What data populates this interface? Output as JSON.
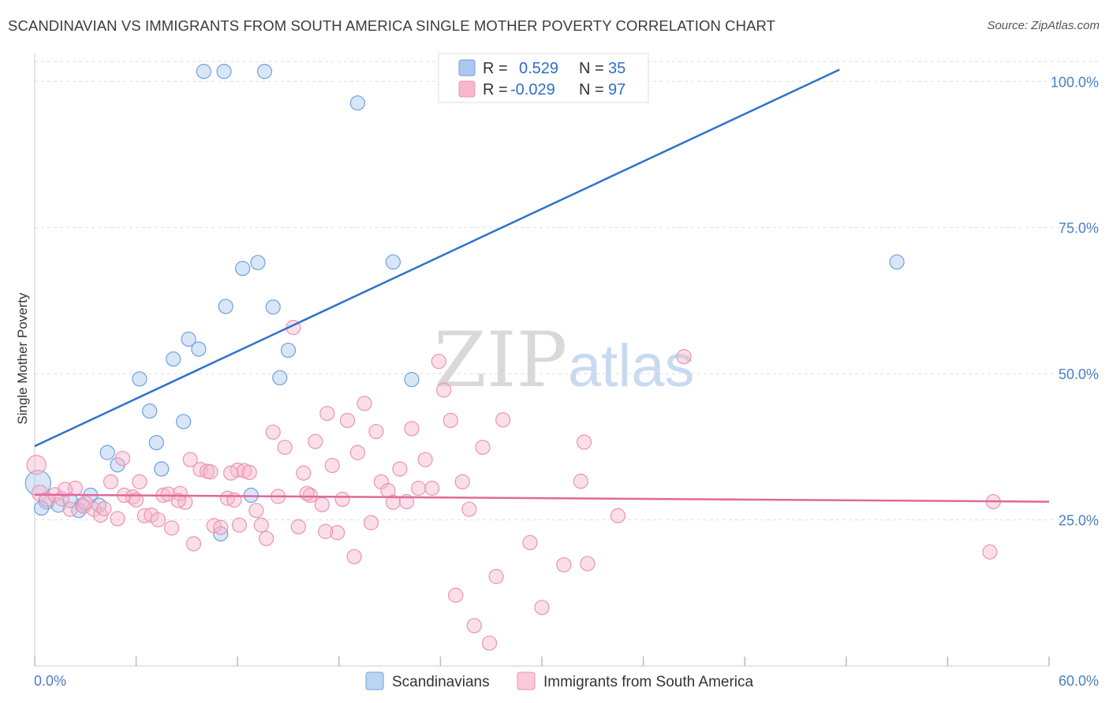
{
  "title": "SCANDINAVIAN VS IMMIGRANTS FROM SOUTH AMERICA SINGLE MOTHER POVERTY CORRELATION CHART",
  "source": "Source: ZipAtlas.com",
  "watermark": {
    "part1": "ZIP",
    "part2": "atlas"
  },
  "legend": {
    "rows": [
      {
        "r_label": "R =",
        "r_value": "0.529",
        "n_label": "N =",
        "n_value": "35",
        "color": "#a9c7ef"
      },
      {
        "r_label": "R =",
        "r_value": "-0.029",
        "n_label": "N =",
        "n_value": "97",
        "color": "#f7b8cb"
      }
    ]
  },
  "bottom_legend": [
    {
      "label": "Scandinavians",
      "color": "#a9c7ef"
    },
    {
      "label": "Immigrants from South America",
      "color": "#f7b8cb"
    }
  ],
  "chart_data": {
    "type": "scatter",
    "title": "SCANDINAVIAN VS IMMIGRANTS FROM SOUTH AMERICA SINGLE MOTHER POVERTY CORRELATION CHART",
    "xlabel": "",
    "ylabel": "Single Mother Poverty",
    "xlim": [
      0,
      60
    ],
    "ylim": [
      0,
      103
    ],
    "x_tick_labels": [
      "0.0%",
      "60.0%"
    ],
    "y_ticks": [
      25,
      50,
      75,
      100
    ],
    "y_tick_labels": [
      "25.0%",
      "50.0%",
      "75.0%",
      "100.0%"
    ],
    "grid": true,
    "legend_position": "top-center",
    "series": [
      {
        "name": "Scandinavians",
        "color": "#6fa0de",
        "fill": "#a9c7ef",
        "trend": {
          "x": [
            0,
            47.6
          ],
          "y": [
            37.6,
            102
          ],
          "color": "#2e72cc"
        },
        "points": [
          [
            0.2,
            31.3,
            16
          ],
          [
            0.7,
            28.2,
            10
          ],
          [
            0.4,
            27.0,
            9
          ],
          [
            1.4,
            27.5,
            9
          ],
          [
            2.1,
            28.3,
            9
          ],
          [
            2.8,
            27.5,
            9
          ],
          [
            2.6,
            26.6,
            9
          ],
          [
            3.3,
            29.2,
            9
          ],
          [
            3.8,
            27.5,
            9
          ],
          [
            4.3,
            36.5,
            9
          ],
          [
            4.9,
            34.4,
            9
          ],
          [
            6.2,
            49.1,
            9
          ],
          [
            6.8,
            43.6,
            9
          ],
          [
            7.2,
            38.2,
            9
          ],
          [
            8.2,
            52.5,
            9
          ],
          [
            8.8,
            41.8,
            9
          ],
          [
            9.1,
            55.9,
            9
          ],
          [
            9.7,
            54.2,
            9
          ],
          [
            7.5,
            33.7,
            9
          ],
          [
            11.0,
            22.6,
            9
          ],
          [
            11.3,
            61.5,
            9
          ],
          [
            12.3,
            68.0,
            9
          ],
          [
            13.2,
            69.0,
            9
          ],
          [
            13.6,
            101.7,
            9
          ],
          [
            14.1,
            61.4,
            9
          ],
          [
            14.5,
            49.3,
            9
          ],
          [
            15.0,
            54.0,
            9
          ],
          [
            12.8,
            29.2,
            9
          ],
          [
            10.0,
            101.7,
            9
          ],
          [
            11.2,
            101.7,
            9
          ],
          [
            19.1,
            96.3,
            9
          ],
          [
            21.2,
            69.1,
            9
          ],
          [
            22.3,
            49.0,
            9
          ],
          [
            25.9,
            101.5,
            9
          ],
          [
            51.0,
            69.1,
            9
          ]
        ]
      },
      {
        "name": "Immigrants from South America",
        "color": "#ec93b1",
        "fill": "#f7b8cb",
        "trend": {
          "x": [
            0,
            60
          ],
          "y": [
            29.3,
            28.1
          ],
          "color": "#e0689a"
        },
        "points": [
          [
            0.1,
            34.4,
            12
          ],
          [
            0.3,
            29.6,
            10
          ],
          [
            0.7,
            28.5,
            9
          ],
          [
            1.2,
            29.3,
            9
          ],
          [
            1.6,
            28.6,
            9
          ],
          [
            2.1,
            26.8,
            9
          ],
          [
            2.9,
            27.3,
            9
          ],
          [
            3.5,
            26.8,
            9
          ],
          [
            3.9,
            25.8,
            9
          ],
          [
            4.1,
            26.9,
            9
          ],
          [
            4.5,
            31.5,
            9
          ],
          [
            4.9,
            25.2,
            9
          ],
          [
            5.2,
            35.5,
            9
          ],
          [
            5.3,
            29.2,
            9
          ],
          [
            5.8,
            28.9,
            9
          ],
          [
            6.2,
            31.5,
            9
          ],
          [
            6.5,
            25.7,
            9
          ],
          [
            6.9,
            25.8,
            9
          ],
          [
            7.3,
            25.0,
            9
          ],
          [
            7.6,
            29.2,
            9
          ],
          [
            7.9,
            29.4,
            9
          ],
          [
            8.1,
            23.6,
            9
          ],
          [
            8.6,
            29.5,
            9
          ],
          [
            8.9,
            28.0,
            9
          ],
          [
            9.2,
            35.3,
            9
          ],
          [
            9.4,
            20.9,
            9
          ],
          [
            9.8,
            33.6,
            9
          ],
          [
            10.2,
            33.3,
            9
          ],
          [
            10.6,
            24.0,
            9
          ],
          [
            11.0,
            23.7,
            9
          ],
          [
            11.4,
            28.7,
            9
          ],
          [
            11.8,
            28.4,
            9
          ],
          [
            12.0,
            33.5,
            9
          ],
          [
            12.4,
            33.4,
            9
          ],
          [
            12.7,
            33.1,
            9
          ],
          [
            13.1,
            26.6,
            9
          ],
          [
            13.4,
            24.1,
            9
          ],
          [
            13.7,
            21.8,
            9
          ],
          [
            14.1,
            40.0,
            9
          ],
          [
            14.4,
            29.0,
            9
          ],
          [
            14.8,
            37.4,
            9
          ],
          [
            15.3,
            57.9,
            9
          ],
          [
            15.6,
            23.8,
            9
          ],
          [
            15.9,
            33.0,
            9
          ],
          [
            16.3,
            29.2,
            9
          ],
          [
            16.6,
            38.4,
            9
          ],
          [
            17.0,
            27.6,
            9
          ],
          [
            17.3,
            43.2,
            9
          ],
          [
            17.6,
            34.3,
            9
          ],
          [
            17.9,
            22.8,
            9
          ],
          [
            18.2,
            28.5,
            9
          ],
          [
            18.5,
            42.0,
            9
          ],
          [
            18.9,
            18.7,
            9
          ],
          [
            19.1,
            36.5,
            9
          ],
          [
            19.5,
            44.9,
            9
          ],
          [
            19.9,
            24.5,
            9
          ],
          [
            20.2,
            40.1,
            9
          ],
          [
            20.5,
            31.5,
            9
          ],
          [
            20.9,
            30.0,
            9
          ],
          [
            21.2,
            28.0,
            9
          ],
          [
            21.6,
            33.7,
            9
          ],
          [
            22.0,
            28.1,
            9
          ],
          [
            22.3,
            40.6,
            9
          ],
          [
            22.7,
            30.4,
            9
          ],
          [
            23.1,
            35.3,
            9
          ],
          [
            23.5,
            30.4,
            9
          ],
          [
            23.9,
            52.1,
            9
          ],
          [
            24.2,
            47.2,
            9
          ],
          [
            24.6,
            42.0,
            9
          ],
          [
            24.9,
            12.1,
            9
          ],
          [
            25.3,
            31.5,
            9
          ],
          [
            25.7,
            26.8,
            9
          ],
          [
            26.0,
            6.9,
            9
          ],
          [
            26.5,
            37.4,
            9
          ],
          [
            26.9,
            3.9,
            9
          ],
          [
            27.3,
            15.3,
            9
          ],
          [
            27.7,
            42.1,
            9
          ],
          [
            29.3,
            21.1,
            9
          ],
          [
            30.0,
            10.0,
            9
          ],
          [
            31.3,
            17.3,
            9
          ],
          [
            32.3,
            31.6,
            9
          ],
          [
            32.5,
            38.3,
            9
          ],
          [
            32.7,
            17.5,
            9
          ],
          [
            34.5,
            25.7,
            9
          ],
          [
            38.4,
            52.9,
            9
          ],
          [
            2.4,
            30.4,
            9
          ],
          [
            3.0,
            27.9,
            9
          ],
          [
            1.8,
            30.2,
            9
          ],
          [
            8.5,
            28.3,
            9
          ],
          [
            10.4,
            33.2,
            9
          ],
          [
            11.6,
            33.0,
            9
          ],
          [
            12.1,
            24.1,
            9
          ],
          [
            16.1,
            29.5,
            9
          ],
          [
            17.2,
            23.0,
            9
          ],
          [
            56.7,
            28.1,
            9
          ],
          [
            56.5,
            19.5,
            9
          ],
          [
            6.0,
            28.4,
            9
          ]
        ]
      }
    ]
  }
}
